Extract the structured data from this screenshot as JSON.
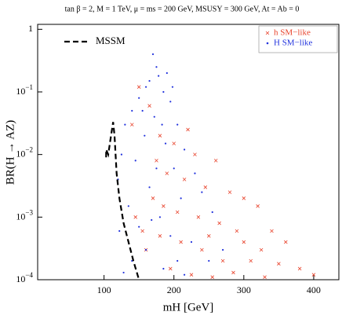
{
  "chart_data": {
    "type": "scatter",
    "title": "tan β = 2,  M = 1 TeV,  μ = ms = 200 GeV,  MSUSY = 300 GeV,  At = Ab = 0",
    "x_label": "mH [GeV]",
    "y_label": "BR(H → AZ)",
    "xlim": [
      5,
      436
    ],
    "xticks": [
      100,
      200,
      300,
      400
    ],
    "ylim": [
      0.0001,
      1.2
    ],
    "log_y": true,
    "yticks": [
      {
        "value": 0.0001,
        "label": "10−4"
      },
      {
        "value": 0.001,
        "label": "10−3"
      },
      {
        "value": 0.01,
        "label": "10−2"
      },
      {
        "value": 0.1,
        "label": "10−1"
      },
      1
    ],
    "legend": "upper right",
    "series": [
      {
        "name": "h SM−like",
        "color": "#e8432c",
        "marker": "x",
        "x": [
          150,
          165,
          140,
          180,
          200,
          230,
          260,
          190,
          215,
          245,
          280,
          300,
          320,
          170,
          205,
          235,
          265,
          290,
          340,
          360,
          180,
          210,
          240,
          270,
          310,
          380,
          400,
          160,
          195,
          225,
          255,
          285,
          330,
          350,
          175,
          220,
          250,
          145,
          155,
          300,
          325,
          185
        ],
        "values": [
          0.12,
          0.06,
          0.03,
          0.02,
          0.015,
          0.01,
          0.008,
          0.005,
          0.004,
          0.003,
          0.0025,
          0.002,
          0.0015,
          0.002,
          0.0012,
          0.001,
          0.0008,
          0.0006,
          0.0006,
          0.0004,
          0.0005,
          0.0004,
          0.0003,
          0.0002,
          0.0002,
          0.00015,
          0.00012,
          0.0003,
          0.00015,
          0.00012,
          0.00011,
          0.00013,
          0.00011,
          0.00018,
          0.008,
          0.025,
          0.0005,
          0.001,
          0.0006,
          0.0004,
          0.0003,
          0.0015
        ]
      },
      {
        "name": "H SM−like",
        "color": "#2233dd",
        "marker": "dot",
        "x": [
          170,
          175,
          178,
          165,
          160,
          185,
          150,
          195,
          140,
          172,
          205,
          130,
          158,
          188,
          215,
          125,
          145,
          200,
          230,
          120,
          165,
          210,
          240,
          135,
          180,
          255,
          150,
          195,
          225,
          160,
          270,
          140,
          185,
          215,
          250,
          175,
          155,
          190,
          183,
          198,
          168,
          205,
          122,
          128
        ],
        "values": [
          0.4,
          0.25,
          0.18,
          0.15,
          0.12,
          0.1,
          0.08,
          0.07,
          0.05,
          0.04,
          0.03,
          0.03,
          0.02,
          0.015,
          0.012,
          0.01,
          0.008,
          0.006,
          0.005,
          0.004,
          0.003,
          0.002,
          0.0025,
          0.0015,
          0.001,
          0.0012,
          0.0007,
          0.0005,
          0.0004,
          0.0003,
          0.0003,
          0.0002,
          0.00015,
          0.00012,
          0.0002,
          0.006,
          0.05,
          0.2,
          0.03,
          0.12,
          0.0009,
          0.0002,
          0.0006,
          0.00013
        ]
      }
    ],
    "curve": {
      "name": "MSSM",
      "color": "#000000",
      "dash": true,
      "x": [
        103,
        103,
        106,
        110,
        113,
        115,
        118,
        122,
        128,
        135,
        142,
        150
      ],
      "values": [
        0.009,
        0.012,
        0.01,
        0.02,
        0.033,
        0.02,
        0.005,
        0.002,
        0.0008,
        0.0004,
        0.0002,
        0.0001
      ]
    }
  }
}
